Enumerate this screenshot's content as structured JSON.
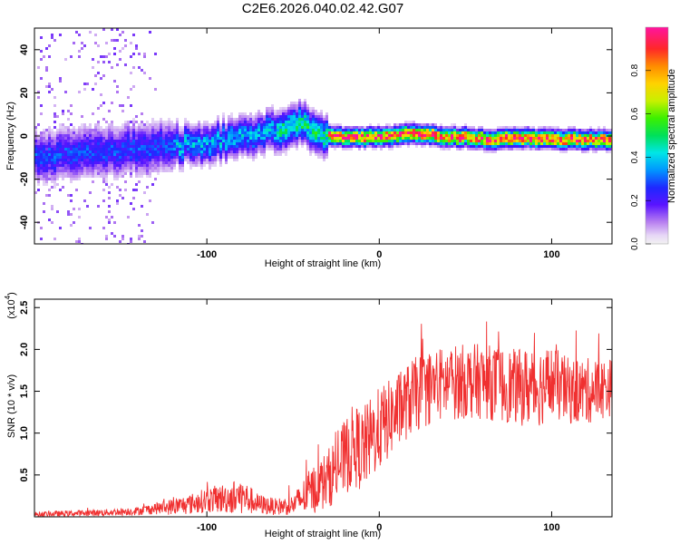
{
  "title": "C2E6.2026.040.02.42.G07",
  "colors": {
    "snr_line": "#f03030",
    "axis": "#000000"
  },
  "chart_data": [
    {
      "type": "heatmap",
      "name": "spectrogram",
      "xlabel": "Height of straight line (km)",
      "ylabel": "Frequency (Hz)",
      "xlim": [
        -200,
        135
      ],
      "ylim": [
        -50,
        50
      ],
      "xticks": [
        -100,
        0,
        100
      ],
      "yticks": [
        -40,
        -20,
        0,
        20,
        40
      ],
      "ridge": {
        "x": [
          -200,
          -180,
          -160,
          -140,
          -120,
          -100,
          -80,
          -70,
          -60,
          -50,
          -45,
          -40,
          -35,
          -30,
          -25,
          -20,
          -10,
          0,
          10,
          20,
          30,
          40,
          50,
          60,
          70,
          80,
          90,
          100,
          110,
          120,
          135
        ],
        "frequency_hz": [
          -9,
          -8,
          -6,
          -5,
          -4,
          -3,
          0,
          2,
          3,
          5,
          6,
          4,
          2,
          1,
          0,
          0,
          0,
          0,
          1,
          2,
          1,
          0,
          0,
          -1,
          -1,
          0,
          -1,
          -1,
          -1,
          -1,
          -1
        ]
      },
      "colorbar": {
        "label": "Normalized spectral amplitude",
        "range": [
          0,
          1
        ],
        "ticks": [
          "0.0",
          "0.2",
          "0.4",
          "0.6",
          "0.8"
        ]
      }
    },
    {
      "type": "line",
      "name": "snr",
      "xlabel": "Height of straight line (km)",
      "ylabel": "SNR (10 * v/v)",
      "scale_label": "(x10",
      "scale_exp": "4",
      "scale_close": ")",
      "xlim": [
        -200,
        135
      ],
      "ylim": [
        0,
        2.6
      ],
      "xticks": [
        -100,
        0,
        100
      ],
      "yticks": [
        "0.5",
        "1.0",
        "1.5",
        "2.0",
        "2.5"
      ],
      "envelope": {
        "x": [
          -200,
          -160,
          -140,
          -130,
          -120,
          -110,
          -100,
          -90,
          -80,
          -70,
          -60,
          -50,
          -40,
          -30,
          -20,
          -15,
          -10,
          0,
          10,
          20,
          30,
          40,
          50,
          60,
          70,
          80,
          90,
          100,
          110,
          120,
          135
        ],
        "mean": [
          0.03,
          0.05,
          0.07,
          0.1,
          0.12,
          0.15,
          0.2,
          0.22,
          0.25,
          0.15,
          0.12,
          0.14,
          0.3,
          0.45,
          0.7,
          0.85,
          0.8,
          1.05,
          1.25,
          1.45,
          1.55,
          1.6,
          1.62,
          1.62,
          1.58,
          1.55,
          1.55,
          1.6,
          1.5,
          1.5,
          1.55
        ],
        "spread": [
          0.03,
          0.04,
          0.05,
          0.07,
          0.1,
          0.12,
          0.15,
          0.18,
          0.22,
          0.12,
          0.1,
          0.12,
          0.28,
          0.35,
          0.45,
          0.5,
          0.5,
          0.5,
          0.45,
          0.45,
          0.45,
          0.45,
          0.45,
          0.45,
          0.45,
          0.45,
          0.5,
          0.45,
          0.4,
          0.4,
          0.35
        ]
      }
    }
  ]
}
